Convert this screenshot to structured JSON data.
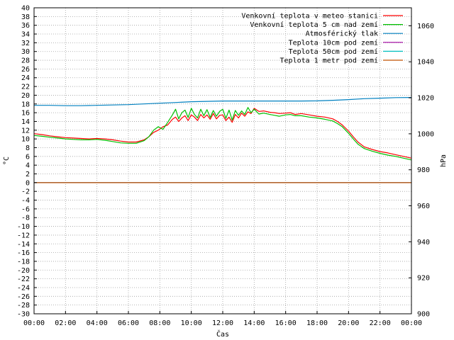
{
  "chart_data": {
    "type": "line",
    "xlabel": "Čas",
    "ylabel": "°C",
    "y2label": "hPa",
    "x_ticks": [
      "00:00",
      "02:00",
      "04:00",
      "06:00",
      "08:00",
      "10:00",
      "12:00",
      "14:00",
      "16:00",
      "18:00",
      "20:00",
      "22:00",
      "00:00"
    ],
    "xlim": [
      0,
      24
    ],
    "ylim": [
      -30,
      40
    ],
    "y_ticks": [
      -30,
      -28,
      -26,
      -24,
      -22,
      -20,
      -18,
      -16,
      -14,
      -12,
      -10,
      -8,
      -6,
      -4,
      -2,
      0,
      2,
      4,
      6,
      8,
      10,
      12,
      14,
      16,
      18,
      20,
      22,
      24,
      26,
      28,
      30,
      32,
      34,
      36,
      38,
      40
    ],
    "y2lim": [
      900,
      1070
    ],
    "y2_ticks": [
      900,
      920,
      940,
      960,
      980,
      1000,
      1020,
      1040,
      1060
    ],
    "grid": true,
    "legend_position": "top-right",
    "series": [
      {
        "name": "Venkovní teplota v meteo stanici",
        "color": "#ff0000",
        "axis": "left",
        "x": [
          0,
          0.5,
          1,
          1.5,
          2,
          2.5,
          3,
          3.5,
          4,
          4.5,
          5,
          5.5,
          6,
          6.5,
          7,
          7.3,
          7.6,
          7.9,
          8.2,
          8.5,
          8.8,
          9,
          9.2,
          9.4,
          9.6,
          9.8,
          10,
          10.2,
          10.4,
          10.6,
          10.8,
          11,
          11.2,
          11.4,
          11.6,
          11.8,
          12,
          12.2,
          12.4,
          12.6,
          12.8,
          13,
          13.2,
          13.4,
          13.6,
          13.8,
          14,
          14.3,
          14.6,
          15,
          15.3,
          15.6,
          16,
          16.3,
          16.6,
          17,
          17.5,
          18,
          18.5,
          19,
          19.3,
          19.6,
          20,
          20.3,
          20.6,
          21,
          21.5,
          22,
          22.5,
          23,
          23.5,
          24
        ],
        "y": [
          11.2,
          11.0,
          10.7,
          10.5,
          10.3,
          10.2,
          10.1,
          10.0,
          10.1,
          10.0,
          9.8,
          9.5,
          9.3,
          9.3,
          9.8,
          10.5,
          11.5,
          12.0,
          12.8,
          13.2,
          14.5,
          15.0,
          14.0,
          14.8,
          15.3,
          14.2,
          15.5,
          15.0,
          14.2,
          15.6,
          14.8,
          15.5,
          14.5,
          15.8,
          14.6,
          15.4,
          15.5,
          14.2,
          15.0,
          13.8,
          15.6,
          14.8,
          15.9,
          15.2,
          16.2,
          15.8,
          17.0,
          16.3,
          16.4,
          16.1,
          16.0,
          15.8,
          15.9,
          16.0,
          15.6,
          15.8,
          15.5,
          15.2,
          15.0,
          14.6,
          14.0,
          13.2,
          11.8,
          10.5,
          9.3,
          8.2,
          7.6,
          7.1,
          6.8,
          6.4,
          6.0,
          5.6
        ]
      },
      {
        "name": "Venkovní teplota 5 cm nad zemí",
        "color": "#00c000",
        "axis": "left",
        "x": [
          0,
          0.5,
          1,
          1.5,
          2,
          2.5,
          3,
          3.5,
          4,
          4.5,
          5,
          5.5,
          6,
          6.5,
          7,
          7.3,
          7.6,
          7.9,
          8.2,
          8.5,
          8.8,
          9,
          9.2,
          9.4,
          9.6,
          9.8,
          10,
          10.2,
          10.4,
          10.6,
          10.8,
          11,
          11.2,
          11.4,
          11.6,
          11.8,
          12,
          12.2,
          12.4,
          12.6,
          12.8,
          13,
          13.2,
          13.4,
          13.6,
          13.8,
          14,
          14.3,
          14.6,
          15,
          15.3,
          15.6,
          16,
          16.3,
          16.6,
          17,
          17.5,
          18,
          18.5,
          19,
          19.3,
          19.6,
          20,
          20.3,
          20.6,
          21,
          21.5,
          22,
          22.5,
          23,
          23.5,
          24
        ],
        "y": [
          10.8,
          10.6,
          10.4,
          10.2,
          10.0,
          9.9,
          9.8,
          9.8,
          9.9,
          9.7,
          9.4,
          9.1,
          9.0,
          9.0,
          9.6,
          10.5,
          12.0,
          12.8,
          12.2,
          13.8,
          15.5,
          16.8,
          14.6,
          16.0,
          16.6,
          14.9,
          17.0,
          15.6,
          14.8,
          16.8,
          15.3,
          16.7,
          14.9,
          16.5,
          15.2,
          16.3,
          16.8,
          14.7,
          16.6,
          14.3,
          16.5,
          15.4,
          16.4,
          15.6,
          17.2,
          16.0,
          16.8,
          15.7,
          15.9,
          15.6,
          15.4,
          15.2,
          15.5,
          15.6,
          15.3,
          15.3,
          15.0,
          14.8,
          14.5,
          14.1,
          13.5,
          12.8,
          11.3,
          10.0,
          8.8,
          7.8,
          7.2,
          6.7,
          6.3,
          6.0,
          5.6,
          5.2
        ]
      },
      {
        "name": "Atmosférický tlak",
        "color": "#0080c0",
        "axis": "right",
        "x": [
          0,
          1,
          2,
          3,
          4,
          5,
          6,
          7,
          8,
          9,
          10,
          11,
          12,
          13,
          14,
          15,
          16,
          17,
          18,
          19,
          20,
          21,
          22,
          23,
          24
        ],
        "y": [
          1015.8,
          1015.8,
          1015.6,
          1015.6,
          1015.8,
          1016.0,
          1016.2,
          1016.6,
          1017.0,
          1017.4,
          1017.8,
          1018.0,
          1018.2,
          1018.2,
          1018.2,
          1018.2,
          1018.2,
          1018.2,
          1018.3,
          1018.6,
          1019.0,
          1019.5,
          1019.8,
          1020.1,
          1020.2
        ]
      },
      {
        "name": "Teplota 10cm pod zemí",
        "color": "#a000a0",
        "axis": "left",
        "x": [
          0,
          24
        ],
        "y": [
          0,
          0
        ]
      },
      {
        "name": "Teplota 50cm pod zemí",
        "color": "#00c0c0",
        "axis": "left",
        "x": [
          0,
          24
        ],
        "y": [
          0,
          0
        ]
      },
      {
        "name": "Teplota 1 metr pod zemí",
        "color": "#c05000",
        "axis": "left",
        "x": [
          0,
          24
        ],
        "y": [
          0,
          0
        ]
      }
    ]
  }
}
